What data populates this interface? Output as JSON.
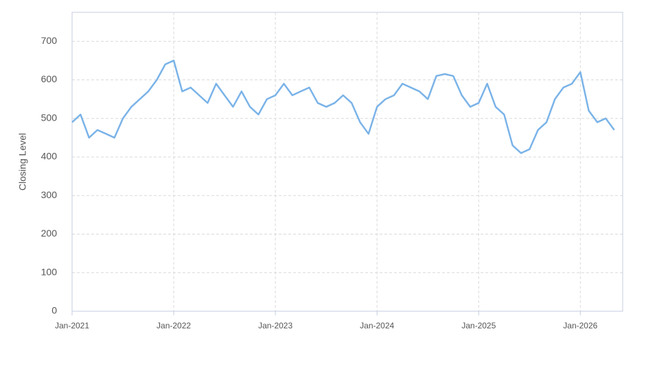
{
  "chart_data": {
    "type": "line",
    "y_label": "Closing Level",
    "x": [
      "2021-01",
      "2021-02",
      "2021-03",
      "2021-04",
      "2021-05",
      "2021-06",
      "2021-07",
      "2021-08",
      "2021-09",
      "2021-10",
      "2021-11",
      "2021-12",
      "2022-01",
      "2022-02",
      "2022-03",
      "2022-04",
      "2022-05",
      "2022-06",
      "2022-07",
      "2022-08",
      "2022-09",
      "2022-10",
      "2022-11",
      "2022-12",
      "2023-01",
      "2023-02",
      "2023-03",
      "2023-04",
      "2023-05",
      "2023-06",
      "2023-07",
      "2023-08",
      "2023-09",
      "2023-10",
      "2023-11",
      "2023-12",
      "2024-01",
      "2024-02",
      "2024-03",
      "2024-04",
      "2024-05",
      "2024-06",
      "2024-07",
      "2024-08",
      "2024-09",
      "2024-10",
      "2024-11",
      "2024-12",
      "2025-01",
      "2025-02",
      "2025-03",
      "2025-04",
      "2025-05",
      "2025-06",
      "2025-07",
      "2025-08",
      "2025-09",
      "2025-10",
      "2025-11",
      "2025-12",
      "2026-01",
      "2026-02",
      "2026-03",
      "2026-04",
      "2026-05"
    ],
    "series": [
      {
        "color": "#7ab3e8",
        "values": [
          490,
          510,
          450,
          470,
          460,
          450,
          500,
          530,
          550,
          570,
          600,
          640,
          650,
          570,
          580,
          560,
          540,
          590,
          560,
          530,
          570,
          530,
          510,
          550,
          560,
          590,
          560,
          570,
          580,
          540,
          530,
          540,
          560,
          540,
          490,
          460,
          530,
          550,
          560,
          590,
          580,
          570,
          550,
          610,
          615,
          610,
          560,
          530,
          540,
          590,
          530,
          510,
          430,
          410,
          420,
          470,
          490,
          550,
          580,
          590,
          620,
          520,
          490,
          500,
          470
        ]
      }
    ],
    "xlim": [
      "2021-01",
      "2026-06"
    ],
    "xticks": [
      {
        "value": "2021-01",
        "label": "Jan-2021"
      },
      {
        "value": "2022-01",
        "label": "Jan-2022"
      },
      {
        "value": "2023-01",
        "label": "Jan-2023"
      },
      {
        "value": "2024-01",
        "label": "Jan-2024"
      },
      {
        "value": "2025-01",
        "label": "Jan-2025"
      },
      {
        "value": "2026-01",
        "label": "Jan-2026"
      }
    ],
    "ylim": [
      0,
      775
    ],
    "yticks": [
      0,
      100,
      200,
      300,
      400,
      500,
      600,
      700
    ],
    "grid": true
  }
}
